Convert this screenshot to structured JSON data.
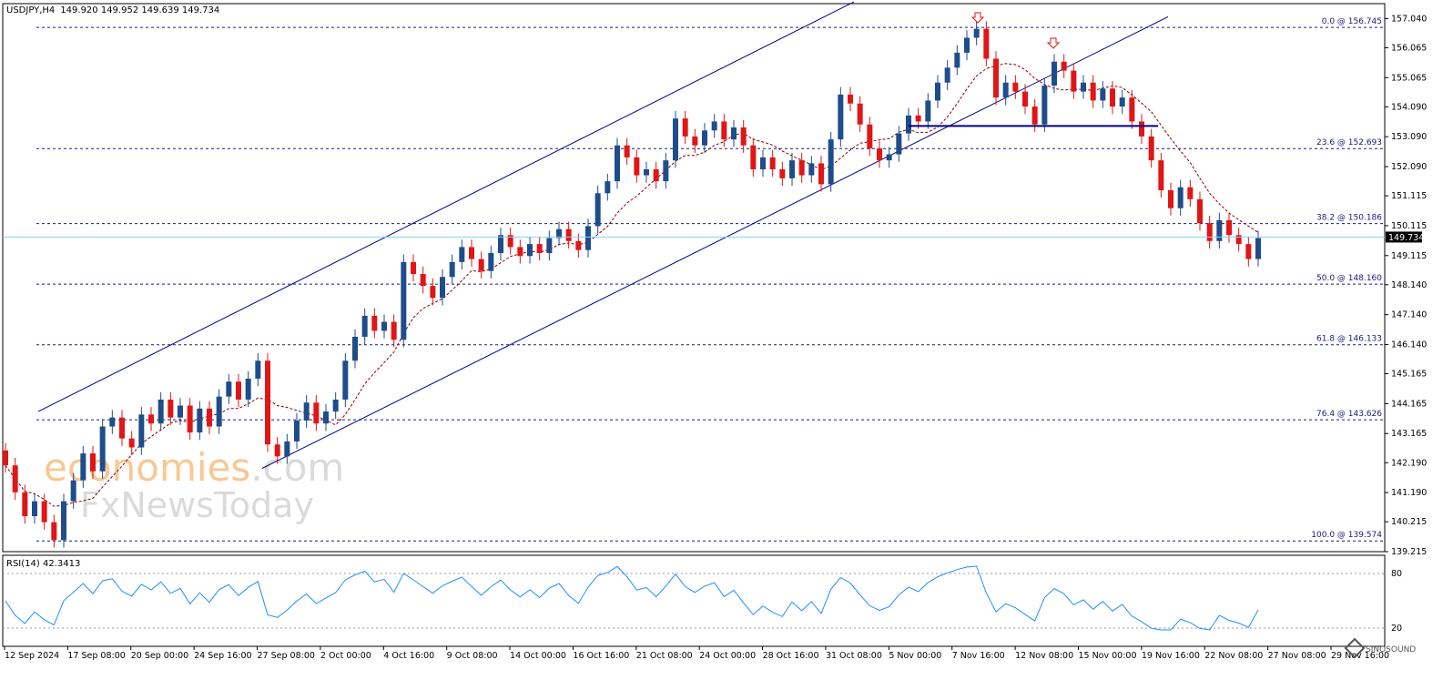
{
  "header": {
    "symbol": "USDJPY,H4",
    "ohlc": "149.920 149.952 149.639 149.734"
  },
  "rsi": {
    "label": "RSI(14) 42.3413",
    "levels": [
      80,
      20
    ],
    "level_labels": [
      "80",
      "20"
    ]
  },
  "watermark": {
    "part1": "eco",
    "part2": "nomies",
    "part3": ".com",
    "line2a": "F",
    "line2b": "xNewsToday",
    "brand": "SINOSOUND"
  },
  "colors": {
    "bull": "#1e4d8a",
    "bear": "#e01616",
    "channel": "#00008b",
    "fib": "#1a1a7a",
    "ma": "#8b0000",
    "rsi": "#1e90ff",
    "price_line": "#87cefa",
    "watermark_orange": "#f39a3c",
    "arrow": "#e01616"
  },
  "chart_data": {
    "type": "candlestick",
    "title": "USDJPY,H4",
    "ylim": [
      139.215,
      157.54
    ],
    "y_ticks": [
      "157.040",
      "156.065",
      "155.065",
      "154.090",
      "153.090",
      "152.090",
      "151.115",
      "150.115",
      "149.115",
      "148.140",
      "147.140",
      "146.140",
      "145.165",
      "144.165",
      "143.165",
      "142.190",
      "141.190",
      "140.215",
      "139.215"
    ],
    "x_ticks": [
      "12 Sep 2024",
      "17 Sep 08:00",
      "20 Sep 00:00",
      "24 Sep 16:00",
      "27 Sep 08:00",
      "2 Oct 00:00",
      "4 Oct 16:00",
      "9 Oct 08:00",
      "14 Oct 00:00",
      "16 Oct 16:00",
      "21 Oct 08:00",
      "24 Oct 00:00",
      "28 Oct 16:00",
      "31 Oct 08:00",
      "5 Nov 00:00",
      "7 Nov 16:00",
      "12 Nov 08:00",
      "15 Nov 00:00",
      "19 Nov 16:00",
      "22 Nov 08:00",
      "27 Nov 08:00",
      "29 Nov 16:00"
    ],
    "current_price": "149.734",
    "fibonacci": [
      {
        "label": "0.0 @ 156.745",
        "value": 156.745
      },
      {
        "label": "23.6 @ 152.693",
        "value": 152.693
      },
      {
        "label": "38.2 @ 150.186",
        "value": 150.186
      },
      {
        "label": "50.0 @ 148.160",
        "value": 148.16
      },
      {
        "label": "61.8 @ 146.133",
        "value": 146.133
      },
      {
        "label": "76.4 @ 143.626",
        "value": 143.626
      },
      {
        "label": "100.0 @ 139.574",
        "value": 139.574
      }
    ],
    "support_level": 153.45,
    "candles_approx": [
      [
        142.6,
        142.1
      ],
      [
        142.1,
        141.2
      ],
      [
        141.2,
        140.4
      ],
      [
        140.4,
        140.9
      ],
      [
        140.9,
        140.2
      ],
      [
        140.2,
        139.6
      ],
      [
        139.6,
        140.9
      ],
      [
        140.9,
        141.6
      ],
      [
        141.6,
        142.5
      ],
      [
        142.5,
        141.9
      ],
      [
        141.9,
        143.4
      ],
      [
        143.4,
        143.7
      ],
      [
        143.7,
        143.0
      ],
      [
        143.0,
        142.7
      ],
      [
        142.7,
        143.8
      ],
      [
        143.8,
        143.5
      ],
      [
        143.5,
        144.3
      ],
      [
        144.3,
        143.7
      ],
      [
        143.7,
        144.1
      ],
      [
        144.1,
        143.2
      ],
      [
        143.2,
        144.0
      ],
      [
        144.0,
        143.4
      ],
      [
        143.4,
        144.4
      ],
      [
        144.4,
        144.9
      ],
      [
        144.9,
        144.3
      ],
      [
        144.3,
        145.0
      ],
      [
        145.0,
        145.6
      ],
      [
        145.6,
        142.8
      ],
      [
        142.8,
        142.4
      ],
      [
        142.4,
        142.9
      ],
      [
        142.9,
        143.6
      ],
      [
        143.6,
        144.2
      ],
      [
        144.2,
        143.5
      ],
      [
        143.5,
        143.9
      ],
      [
        143.9,
        144.3
      ],
      [
        144.3,
        145.6
      ],
      [
        145.6,
        146.4
      ],
      [
        146.4,
        147.1
      ],
      [
        147.1,
        146.6
      ],
      [
        146.6,
        146.9
      ],
      [
        146.9,
        146.3
      ],
      [
        146.3,
        148.9
      ],
      [
        148.9,
        148.5
      ],
      [
        148.5,
        148.1
      ],
      [
        148.1,
        147.7
      ],
      [
        147.7,
        148.4
      ],
      [
        148.4,
        148.9
      ],
      [
        148.9,
        149.4
      ],
      [
        149.4,
        149.0
      ],
      [
        149.0,
        148.6
      ],
      [
        148.6,
        149.2
      ],
      [
        149.2,
        149.8
      ],
      [
        149.8,
        149.4
      ],
      [
        149.4,
        149.1
      ],
      [
        149.1,
        149.5
      ],
      [
        149.5,
        149.2
      ],
      [
        149.2,
        149.7
      ],
      [
        149.7,
        150.0
      ],
      [
        150.0,
        149.6
      ],
      [
        149.6,
        149.3
      ],
      [
        149.3,
        150.1
      ],
      [
        150.1,
        151.2
      ],
      [
        151.2,
        151.6
      ],
      [
        151.6,
        152.8
      ],
      [
        152.8,
        152.4
      ],
      [
        152.4,
        151.8
      ],
      [
        151.8,
        152.0
      ],
      [
        152.0,
        151.6
      ],
      [
        151.6,
        152.3
      ],
      [
        152.3,
        153.7
      ],
      [
        153.7,
        153.1
      ],
      [
        153.1,
        152.8
      ],
      [
        152.8,
        153.3
      ],
      [
        153.3,
        153.6
      ],
      [
        153.6,
        153.0
      ],
      [
        153.0,
        153.4
      ],
      [
        153.4,
        152.8
      ],
      [
        152.8,
        152.0
      ],
      [
        152.0,
        152.4
      ],
      [
        152.4,
        152.0
      ],
      [
        152.0,
        151.7
      ],
      [
        151.7,
        152.3
      ],
      [
        152.3,
        151.8
      ],
      [
        151.8,
        152.2
      ],
      [
        152.2,
        151.5
      ],
      [
        151.5,
        153.0
      ],
      [
        153.0,
        154.5
      ],
      [
        154.5,
        154.2
      ],
      [
        154.2,
        153.5
      ],
      [
        153.5,
        152.7
      ],
      [
        152.7,
        152.3
      ],
      [
        152.3,
        152.5
      ],
      [
        152.5,
        153.2
      ],
      [
        153.2,
        153.8
      ],
      [
        153.8,
        153.6
      ],
      [
        153.6,
        154.3
      ],
      [
        154.3,
        154.9
      ],
      [
        154.9,
        155.4
      ],
      [
        155.4,
        155.9
      ],
      [
        155.9,
        156.4
      ],
      [
        156.4,
        156.7
      ],
      [
        156.7,
        155.7
      ],
      [
        155.7,
        154.4
      ],
      [
        154.4,
        154.9
      ],
      [
        154.9,
        154.6
      ],
      [
        154.6,
        154.1
      ],
      [
        154.1,
        153.5
      ],
      [
        153.5,
        154.8
      ],
      [
        154.8,
        155.6
      ],
      [
        155.6,
        155.3
      ],
      [
        155.3,
        154.6
      ],
      [
        154.6,
        154.9
      ],
      [
        154.9,
        154.3
      ],
      [
        154.3,
        154.7
      ],
      [
        154.7,
        154.1
      ],
      [
        154.1,
        154.4
      ],
      [
        154.4,
        153.6
      ],
      [
        153.6,
        153.1
      ],
      [
        153.1,
        152.3
      ],
      [
        152.3,
        151.3
      ],
      [
        151.3,
        150.7
      ],
      [
        150.7,
        151.4
      ],
      [
        151.4,
        151.0
      ],
      [
        151.0,
        150.2
      ],
      [
        150.2,
        149.6
      ],
      [
        149.6,
        150.3
      ],
      [
        150.3,
        149.8
      ],
      [
        149.8,
        149.5
      ],
      [
        149.5,
        149.0
      ],
      [
        149.0,
        149.7
      ]
    ]
  }
}
